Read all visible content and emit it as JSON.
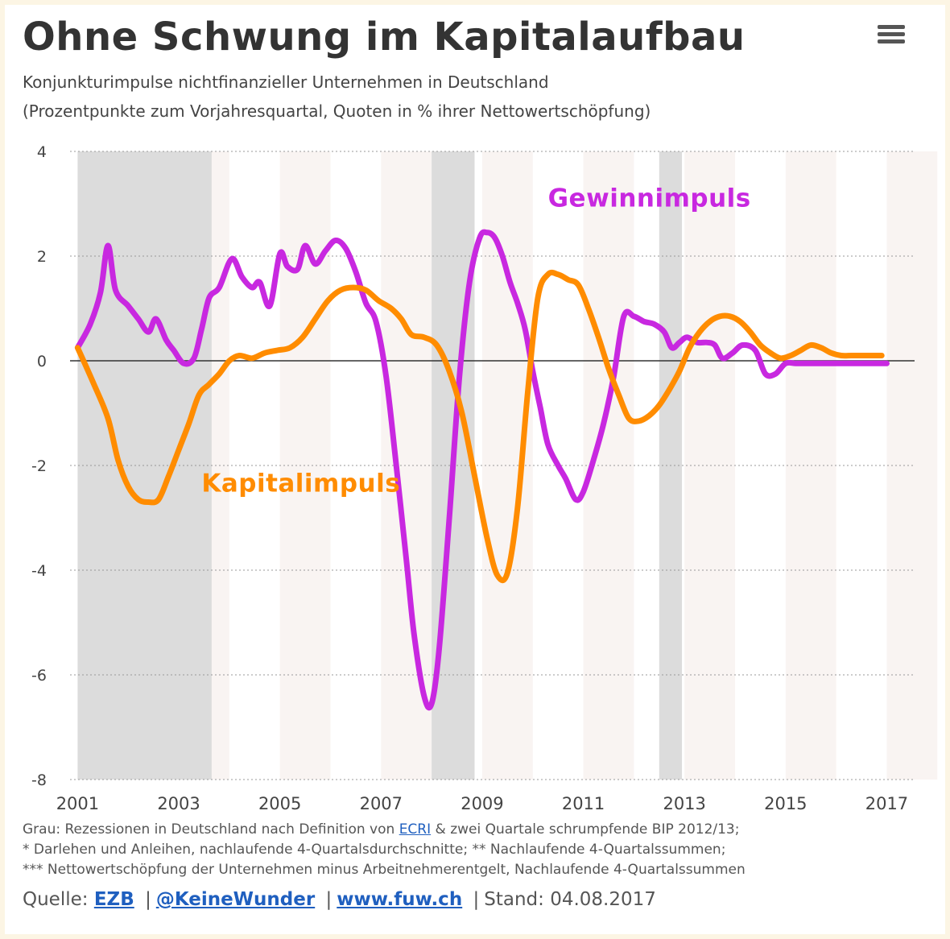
{
  "header": {
    "title": "Ohne Schwung im Kapitalaufbau",
    "subtitle_line1": "Konjunkturimpulse nichtfinanzieller Unternehmen in Deutschland",
    "subtitle_line2": "(Prozentpunkte zum Vorjahresquartal, Quoten in % ihrer Nettowertschöpfung)",
    "menu_icon": "hamburger-menu-icon"
  },
  "chart_data": {
    "type": "line",
    "title": "Ohne Schwung im Kapitalaufbau",
    "subtitle": "Konjunkturimpulse nichtfinanzieller Unternehmen in Deutschland (Prozentpunkte zum Vorjahresquartal, Quoten in % ihrer Nettowertschöpfung)",
    "xlabel": "",
    "ylabel": "",
    "xlim": [
      2000.85,
      2017.55
    ],
    "ylim": [
      -8,
      4
    ],
    "yticks": [
      "4",
      "2",
      "0",
      "-2",
      "-4",
      "-6",
      "-8"
    ],
    "ytick_values": [
      4,
      2,
      0,
      -2,
      -4,
      -6,
      -8
    ],
    "xticks": [
      "2001",
      "2003",
      "2005",
      "2007",
      "2009",
      "2011",
      "2013",
      "2015",
      "2017"
    ],
    "xtick_values": [
      2001,
      2003,
      2005,
      2007,
      2009,
      2011,
      2013,
      2015,
      2017
    ],
    "grid": true,
    "legend": "none",
    "recessions": [
      [
        2001.0,
        2003.65
      ],
      [
        2008.0,
        2008.85
      ],
      [
        2012.5,
        2012.95
      ]
    ],
    "series": [
      {
        "name": "Gewinnimpuls",
        "color": "#c828e0",
        "x": [
          2001.0,
          2001.25,
          2001.45,
          2001.6,
          2001.75,
          2002.0,
          2002.2,
          2002.4,
          2002.55,
          2002.75,
          2002.9,
          2003.1,
          2003.3,
          2003.45,
          2003.6,
          2003.8,
          2004.05,
          2004.25,
          2004.45,
          2004.6,
          2004.8,
          2005.0,
          2005.15,
          2005.35,
          2005.5,
          2005.7,
          2005.9,
          2006.1,
          2006.3,
          2006.5,
          2006.7,
          2006.9,
          2007.1,
          2007.3,
          2007.5,
          2007.65,
          2007.85,
          2008.0,
          2008.15,
          2008.35,
          2008.55,
          2008.75,
          2008.95,
          2009.1,
          2009.25,
          2009.4,
          2009.55,
          2009.7,
          2009.85,
          2010.0,
          2010.15,
          2010.3,
          2010.5,
          2010.65,
          2010.85,
          2011.0,
          2011.2,
          2011.4,
          2011.6,
          2011.8,
          2012.0,
          2012.2,
          2012.4,
          2012.6,
          2012.75,
          2012.9,
          2013.05,
          2013.25,
          2013.45,
          2013.6,
          2013.75,
          2013.95,
          2014.15,
          2014.4,
          2014.6,
          2014.8,
          2015.0,
          2015.2,
          2015.4,
          2015.6,
          2015.8,
          2016.0,
          2016.2,
          2016.4,
          2016.6,
          2016.8,
          2017.0
        ],
        "y": [
          0.25,
          0.7,
          1.3,
          2.2,
          1.35,
          1.05,
          0.8,
          0.55,
          0.8,
          0.4,
          0.2,
          -0.05,
          0.05,
          0.6,
          1.2,
          1.4,
          1.95,
          1.6,
          1.4,
          1.5,
          1.05,
          2.05,
          1.8,
          1.75,
          2.2,
          1.85,
          2.1,
          2.3,
          2.15,
          1.7,
          1.1,
          0.75,
          -0.3,
          -2.0,
          -3.8,
          -5.2,
          -6.4,
          -6.55,
          -5.5,
          -3.0,
          -0.3,
          1.5,
          2.35,
          2.45,
          2.35,
          2.0,
          1.5,
          1.1,
          0.6,
          -0.2,
          -0.9,
          -1.6,
          -2.0,
          -2.25,
          -2.65,
          -2.5,
          -1.9,
          -1.2,
          -0.3,
          0.85,
          0.85,
          0.75,
          0.7,
          0.55,
          0.25,
          0.35,
          0.45,
          0.35,
          0.35,
          0.3,
          0.05,
          0.15,
          0.3,
          0.2,
          -0.25,
          -0.25,
          -0.05,
          -0.05,
          -0.05,
          -0.05,
          -0.05,
          -0.05,
          -0.05,
          -0.05,
          -0.05,
          -0.05,
          -0.05
        ]
      },
      {
        "name": "Kapitalimpuls",
        "color": "#ff8c00",
        "x": [
          2001.0,
          2001.3,
          2001.6,
          2001.8,
          2002.0,
          2002.2,
          2002.4,
          2002.6,
          2002.8,
          2003.0,
          2003.2,
          2003.4,
          2003.6,
          2003.8,
          2004.0,
          2004.2,
          2004.45,
          2004.7,
          2004.95,
          2005.2,
          2005.45,
          2005.7,
          2005.95,
          2006.2,
          2006.45,
          2006.7,
          2006.95,
          2007.2,
          2007.4,
          2007.6,
          2007.85,
          2008.1,
          2008.35,
          2008.6,
          2008.85,
          2009.1,
          2009.3,
          2009.5,
          2009.7,
          2009.9,
          2010.1,
          2010.3,
          2010.5,
          2010.7,
          2010.9,
          2011.1,
          2011.3,
          2011.5,
          2011.7,
          2011.9,
          2012.1,
          2012.3,
          2012.5,
          2012.7,
          2012.9,
          2013.1,
          2013.3,
          2013.5,
          2013.7,
          2013.9,
          2014.1,
          2014.3,
          2014.5,
          2014.7,
          2014.9,
          2015.1,
          2015.3,
          2015.5,
          2015.7,
          2015.9,
          2016.1,
          2016.3,
          2016.5,
          2016.7,
          2016.9
        ],
        "y": [
          0.25,
          -0.4,
          -1.1,
          -1.9,
          -2.4,
          -2.65,
          -2.7,
          -2.65,
          -2.2,
          -1.7,
          -1.2,
          -0.65,
          -0.45,
          -0.25,
          0.0,
          0.1,
          0.05,
          0.15,
          0.2,
          0.25,
          0.45,
          0.8,
          1.15,
          1.35,
          1.4,
          1.35,
          1.15,
          1.0,
          0.8,
          0.5,
          0.45,
          0.3,
          -0.2,
          -1.0,
          -2.2,
          -3.4,
          -4.1,
          -4.05,
          -2.8,
          -0.6,
          1.2,
          1.65,
          1.65,
          1.55,
          1.45,
          1.0,
          0.45,
          -0.15,
          -0.65,
          -1.1,
          -1.15,
          -1.05,
          -0.85,
          -0.55,
          -0.2,
          0.25,
          0.55,
          0.75,
          0.85,
          0.85,
          0.75,
          0.55,
          0.3,
          0.15,
          0.05,
          0.1,
          0.2,
          0.3,
          0.25,
          0.15,
          0.1,
          0.1,
          0.1,
          0.1,
          0.1
        ]
      }
    ],
    "annotations": [
      {
        "text": "Gewinnimpuls",
        "x": 2010.3,
        "y": 2.95,
        "color": "#c828e0"
      },
      {
        "text": "Kapitalimpuls",
        "x": 2003.45,
        "y": -2.5,
        "color": "#ff8c00"
      }
    ]
  },
  "footnotes": {
    "line1_pre": "Grau: Rezessionen in Deutschland nach Definition von ",
    "line1_link": "ECRI",
    "line1_post": " & zwei Quartale schrumpfende BIP 2012/13;",
    "line2": "* Darlehen und Anleihen, nachlaufende 4-Quartalsdurchschnitte; ** Nachlaufende 4-Quartalssummen;",
    "line3": "*** Nettowertschöpfung der Unternehmen minus Arbeitnehmerentgelt, Nachlaufende 4-Quartalssummen"
  },
  "source": {
    "prefix": "Quelle:",
    "link1": "EZB",
    "link2": "@KeineWunder",
    "link3": "www.fuw.ch",
    "separator": "|",
    "date": "Stand: 04.08.2017"
  }
}
